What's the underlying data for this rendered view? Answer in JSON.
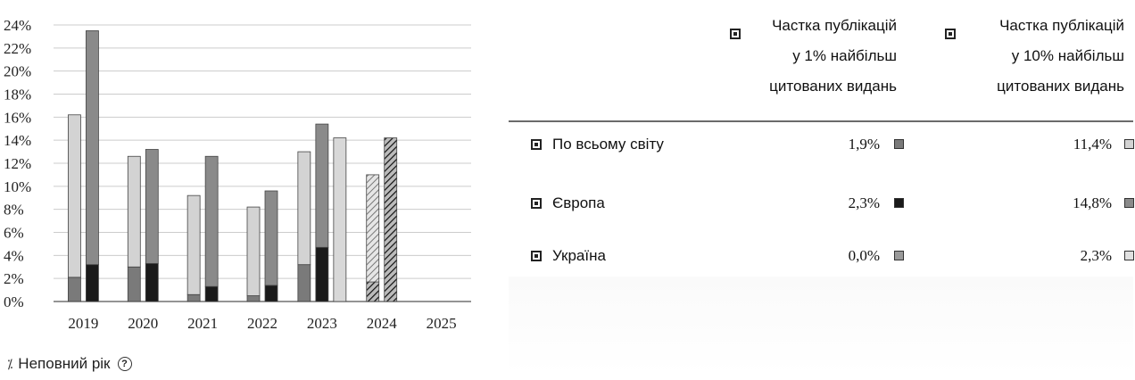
{
  "chart_data": {
    "type": "bar",
    "categories": [
      "2019",
      "2020",
      "2021",
      "2022",
      "2023",
      "2024",
      "2025"
    ],
    "y_ticks": [
      "0%",
      "2%",
      "4%",
      "6%",
      "8%",
      "10%",
      "12%",
      "14%",
      "16%",
      "18%",
      "20%",
      "22%",
      "24%"
    ],
    "ylim": [
      0,
      24
    ],
    "grid": true,
    "incomplete_categories": [
      "2024"
    ],
    "bar_groups": [
      {
        "category": "2019",
        "bars": [
          {
            "segments": [
              {
                "value": 2.1,
                "color": "#7a7a7a"
              },
              {
                "value": 14.1,
                "color": "#d3d3d3"
              }
            ],
            "hatched": false
          },
          {
            "segments": [
              {
                "value": 3.2,
                "color": "#1a1a1a"
              },
              {
                "value": 20.3,
                "color": "#8a8a8a"
              }
            ],
            "hatched": false
          }
        ]
      },
      {
        "category": "2020",
        "bars": [
          {
            "segments": [
              {
                "value": 3.0,
                "color": "#7a7a7a"
              },
              {
                "value": 9.6,
                "color": "#d3d3d3"
              }
            ],
            "hatched": false
          },
          {
            "segments": [
              {
                "value": 3.3,
                "color": "#1a1a1a"
              },
              {
                "value": 9.9,
                "color": "#8a8a8a"
              }
            ],
            "hatched": false
          }
        ]
      },
      {
        "category": "2021",
        "bars": [
          {
            "segments": [
              {
                "value": 0.6,
                "color": "#7a7a7a"
              },
              {
                "value": 8.6,
                "color": "#d3d3d3"
              }
            ],
            "hatched": false
          },
          {
            "segments": [
              {
                "value": 1.3,
                "color": "#1a1a1a"
              },
              {
                "value": 11.3,
                "color": "#8a8a8a"
              }
            ],
            "hatched": false
          }
        ]
      },
      {
        "category": "2022",
        "bars": [
          {
            "segments": [
              {
                "value": 0.5,
                "color": "#7a7a7a"
              },
              {
                "value": 7.7,
                "color": "#d3d3d3"
              }
            ],
            "hatched": false
          },
          {
            "segments": [
              {
                "value": 1.4,
                "color": "#1a1a1a"
              },
              {
                "value": 8.2,
                "color": "#8a8a8a"
              }
            ],
            "hatched": false
          }
        ]
      },
      {
        "category": "2023",
        "bars": [
          {
            "segments": [
              {
                "value": 3.2,
                "color": "#7a7a7a"
              },
              {
                "value": 9.8,
                "color": "#d3d3d3"
              }
            ],
            "hatched": false
          },
          {
            "segments": [
              {
                "value": 4.7,
                "color": "#1a1a1a"
              },
              {
                "value": 10.7,
                "color": "#8a8a8a"
              }
            ],
            "hatched": false
          },
          {
            "segments": [
              {
                "value": 14.2,
                "color": "#d8d8d8"
              }
            ],
            "hatched": false
          }
        ]
      },
      {
        "category": "2024",
        "bars": [
          {
            "segments": [
              {
                "value": 1.7,
                "color": "#5a5a5a"
              },
              {
                "value": 9.3,
                "color": "#cfcfcf"
              }
            ],
            "hatched": true
          },
          {
            "segments": [
              {
                "value": 14.2,
                "color": "#555555"
              }
            ],
            "hatched": true
          }
        ]
      },
      {
        "category": "2025",
        "bars": []
      }
    ]
  },
  "footnote": {
    "hatch_icon": "hatched-stripes-icon",
    "label": "Неповний рік",
    "help_icon": "question-circle-icon",
    "help_glyph": "?"
  },
  "table": {
    "columns": [
      {
        "icon": "legend-box-icon",
        "lines": [
          "Частка публікацій",
          "у 1% найбільш",
          "цитованих видань"
        ]
      },
      {
        "icon": "legend-box-icon",
        "lines": [
          "Частка публікацій",
          "у 10% найбільш",
          "цитованих видань"
        ]
      }
    ],
    "rows": [
      {
        "icon": "legend-box-icon",
        "label": "По всьому світу",
        "v1": "1,9%",
        "v1_color": "#7a7a7a",
        "v2": "11,4%",
        "v2_color": "#d3d3d3"
      },
      {
        "icon": "legend-box-icon",
        "label": "Європа",
        "v1": "2,3%",
        "v1_color": "#1a1a1a",
        "v2": "14,8%",
        "v2_color": "#8a8a8a"
      },
      {
        "icon": "legend-box-icon",
        "label": "Україна",
        "v1": "0,0%",
        "v1_color": "#9a9a9a",
        "v2": "2,3%",
        "v2_color": "#e0e0e0"
      }
    ]
  }
}
